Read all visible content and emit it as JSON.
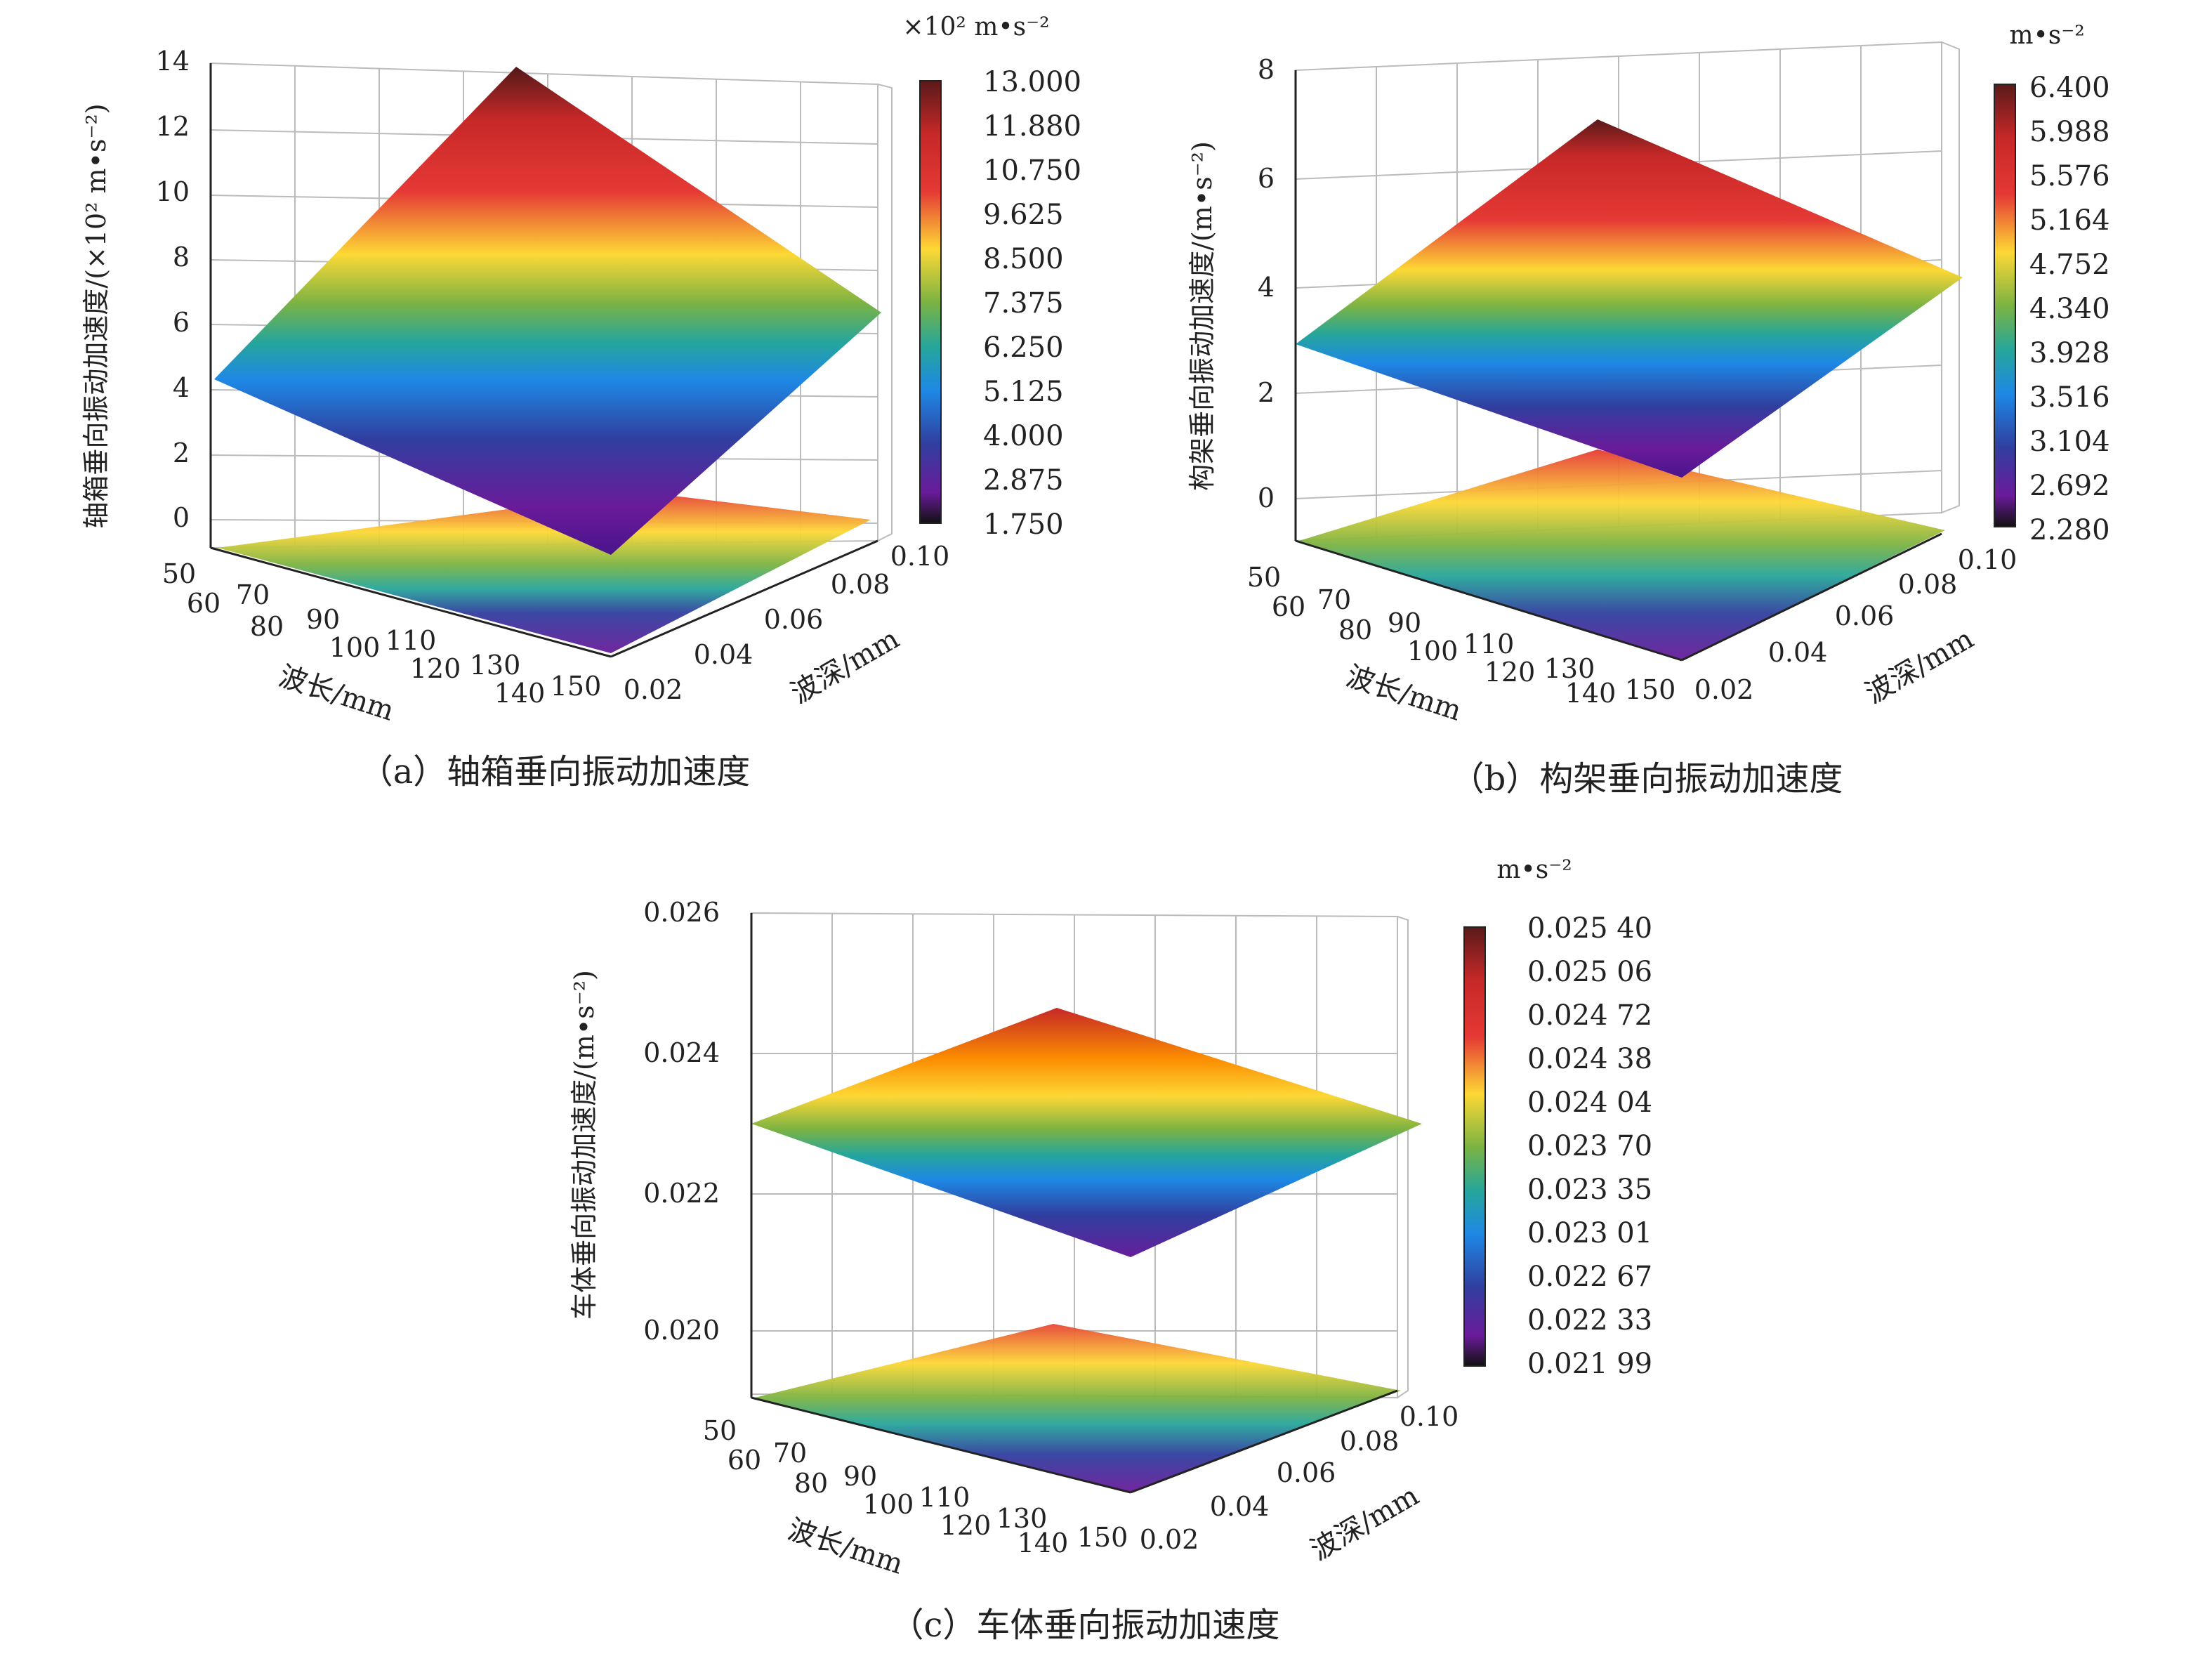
{
  "chart_data": [
    {
      "type": "surface3d",
      "caption": "（a）轴箱垂向振动加速度",
      "zlabel": "轴箱垂向振动加速度/(×10² m•s⁻²)",
      "zticks": [
        "14",
        "12",
        "10",
        "8",
        "6",
        "4",
        "2",
        "0"
      ],
      "xlabel": "波长/mm",
      "xticks": [
        "50",
        "60",
        "70",
        "80",
        "90",
        "100",
        "110",
        "120",
        "130",
        "140",
        "150"
      ],
      "ylabel": "波深/mm",
      "yticks": [
        "0.02",
        "0.04",
        "0.06",
        "0.08",
        "0.10"
      ],
      "colorbar_unit": "×10² m•s⁻²",
      "colorbar_ticks": [
        "13.000",
        "11.880",
        "10.750",
        "9.625",
        "8.500",
        "7.375",
        "6.250",
        "5.125",
        "4.000",
        "2.875",
        "1.750"
      ],
      "zrange": [
        0,
        14
      ],
      "surface_corners": {
        "wavelength_50_depth_0.02": 4.4,
        "wavelength_150_depth_0.02": 1.75,
        "wavelength_50_depth_0.10": 13.0,
        "wavelength_150_depth_0.10": 6.2
      }
    },
    {
      "type": "surface3d",
      "caption": "（b）构架垂向振动加速度",
      "zlabel": "构架垂向振动加速度/(m•s⁻²)",
      "zticks": [
        "8",
        "6",
        "4",
        "2",
        "0"
      ],
      "xlabel": "波长/mm",
      "xticks": [
        "50",
        "60",
        "70",
        "80",
        "90",
        "100",
        "110",
        "120",
        "130",
        "140",
        "150"
      ],
      "ylabel": "波深/mm",
      "yticks": [
        "0.02",
        "0.04",
        "0.06",
        "0.08",
        "0.10"
      ],
      "colorbar_unit": "m•s⁻²",
      "colorbar_ticks": [
        "6.400",
        "5.988",
        "5.576",
        "5.164",
        "4.752",
        "4.340",
        "3.928",
        "3.516",
        "3.104",
        "2.692",
        "2.280"
      ],
      "zrange": [
        0,
        8
      ],
      "surface_corners": {
        "wavelength_50_depth_0.02": 2.9,
        "wavelength_150_depth_0.02": 2.28,
        "wavelength_50_depth_0.10": 6.4,
        "wavelength_150_depth_0.10": 4.2
      }
    },
    {
      "type": "surface3d",
      "caption": "（c）车体垂向振动加速度",
      "zlabel": "车体垂向振动加速度/(m•s⁻²)",
      "zticks": [
        "0.026",
        "0.024",
        "0.022",
        "0.020"
      ],
      "xlabel": "波长/mm",
      "xticks": [
        "50",
        "60",
        "70",
        "80",
        "90",
        "100",
        "110",
        "120",
        "130",
        "140",
        "150"
      ],
      "ylabel": "波深/mm",
      "yticks": [
        "0.02",
        "0.04",
        "0.06",
        "0.08",
        "0.10"
      ],
      "colorbar_unit": "m•s⁻²",
      "colorbar_ticks": [
        "0.025 40",
        "0.025 06",
        "0.024 72",
        "0.024 38",
        "0.024 04",
        "0.023 70",
        "0.023 35",
        "0.023 01",
        "0.022 67",
        "0.022 33",
        "0.021 99"
      ],
      "zrange": [
        0.0195,
        0.026
      ],
      "surface_corners": {
        "wavelength_50_depth_0.02": 0.023,
        "wavelength_150_depth_0.02": 0.02199,
        "wavelength_50_depth_0.10": 0.0254,
        "wavelength_150_depth_0.10": 0.023
      }
    }
  ]
}
